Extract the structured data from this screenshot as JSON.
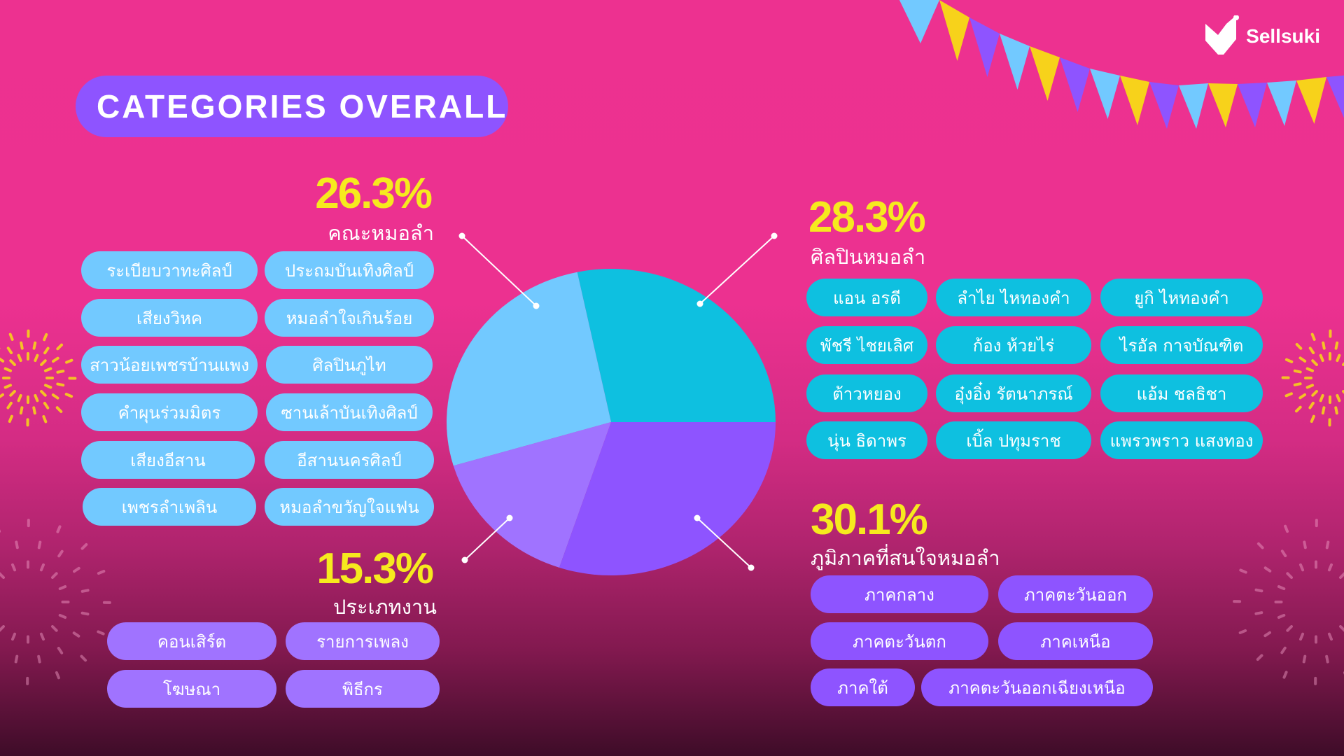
{
  "title": "CATEGORIES OVERALL",
  "brand": {
    "name": "Sellsuki"
  },
  "colors": {
    "light_blue": "#72C9FF",
    "cyan": "#0EC0E0",
    "purple": "#8E54FF",
    "light_purple": "#A073FF",
    "accent_yellow": "#F6EA1E",
    "background": "#EC3190"
  },
  "chart_data": {
    "type": "pie",
    "title": "CATEGORIES OVERALL",
    "categories": [
      "ศิลปินหมอลำ",
      "คณะหมอลำ",
      "ประเภทงาน",
      "ภูมิภาคที่สนใจหมอลำ"
    ],
    "values": [
      28.3,
      26.3,
      15.3,
      30.1
    ],
    "labels": [
      "28.3%",
      "26.3%",
      "15.3%",
      "30.1%"
    ],
    "colors": [
      "#0EC0E0",
      "#72C9FF",
      "#A073FF",
      "#8E54FF"
    ]
  },
  "groups": {
    "troupes": {
      "percent": "26.3%",
      "label": "คณะหมอลำ",
      "items": [
        "ระเบียบวาทะศิลป์",
        "ประถมบันเทิงศิลป์",
        "เสียงวิหค",
        "หมอลำใจเกินร้อย",
        "สาวน้อยเพชรบ้านแพง",
        "ศิลปินภูไท",
        "คำผุนร่วมมิตร",
        "ซานเล้าบันเทิงศิลป์",
        "เสียงอีสาน",
        "อีสานนครศิลป์",
        "เพชรลำเพลิน",
        "หมอลำขวัญใจแฟน"
      ]
    },
    "artists": {
      "percent": "28.3%",
      "label": "ศิลปินหมอลำ",
      "items": [
        "แอน อรดี",
        "ลำไย ไหทองคำ",
        "ยูกิ ไหทองคำ",
        "พัชรี ไชยเลิศ",
        "ก้อง ห้วยไร่",
        "ไรอัล กาจบัณฑิต",
        "ต้าวหยอง",
        "อุ๋งอิ๋ง รัตนาภรณ์",
        "แอ้ม ชลธิชา",
        "นุ่น ธิดาพร",
        "เบิ้ล ปทุมราช",
        "แพรวพราว แสงทอง"
      ]
    },
    "event_types": {
      "percent": "15.3%",
      "label": "ประเภทงาน",
      "items": [
        "คอนเสิร์ต",
        "รายการเพลง",
        "โฆษณา",
        "พิธีกร"
      ]
    },
    "regions": {
      "percent": "30.1%",
      "label": "ภูมิภาคที่สนใจหมอลำ",
      "items": [
        "ภาคกลาง",
        "ภาคตะวันออก",
        "ภาคตะวันตก",
        "ภาคเหนือ",
        "ภาคใต้",
        "ภาคตะวันออกเฉียงเหนือ"
      ]
    }
  }
}
